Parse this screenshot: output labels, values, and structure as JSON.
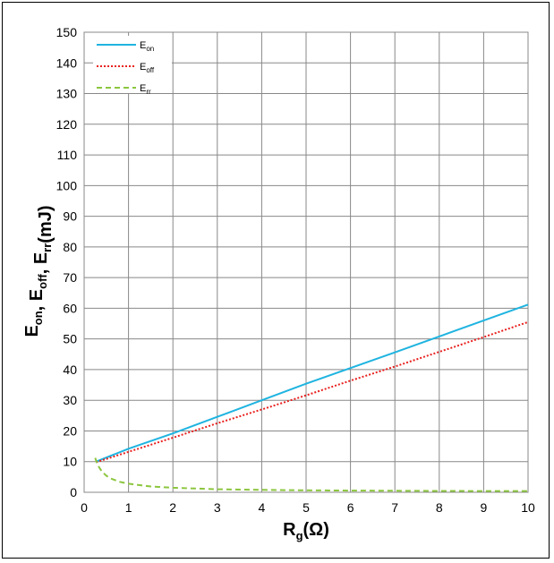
{
  "chart_data": {
    "type": "line",
    "xlabel": {
      "main": "R",
      "sub": "g",
      "rest": "(Ω)"
    },
    "ylabel": [
      {
        "main": "E",
        "sub": "on"
      },
      {
        "main": ", E",
        "sub": "off"
      },
      {
        "main": ", E",
        "sub": "rr"
      },
      {
        "main": "(mJ)",
        "sub": ""
      }
    ],
    "xlim": [
      0,
      10
    ],
    "ylim": [
      0,
      150
    ],
    "x_ticks": [
      0,
      1,
      2,
      3,
      4,
      5,
      6,
      7,
      8,
      9,
      10
    ],
    "y_ticks": [
      0,
      10,
      20,
      30,
      40,
      50,
      60,
      70,
      80,
      90,
      100,
      110,
      120,
      130,
      140,
      150
    ],
    "grid": true,
    "legend_position": "top-left",
    "series": [
      {
        "name": "E",
        "name_sub": "on",
        "color": "#1FB4E0",
        "dash": "solid",
        "x": [
          0.27,
          1,
          2,
          3,
          4,
          5,
          6,
          7,
          8,
          9,
          10
        ],
        "y": [
          10,
          14.2,
          19.2,
          24.6,
          30.0,
          35.4,
          40.5,
          45.6,
          50.8,
          56.0,
          61.2
        ]
      },
      {
        "name": "E",
        "name_sub": "off",
        "color": "#E8201E",
        "dash": "dotted",
        "x": [
          0.27,
          1,
          2,
          3,
          4,
          5,
          6,
          7,
          8,
          9,
          10
        ],
        "y": [
          9.8,
          13.2,
          17.8,
          22.5,
          27.0,
          31.6,
          36.4,
          41.0,
          45.8,
          50.6,
          55.5
        ]
      },
      {
        "name": "E",
        "name_sub": "rr",
        "color": "#8CC63F",
        "dash": "dashed",
        "x": [
          0.25,
          0.3,
          0.4,
          0.5,
          0.6,
          0.8,
          1,
          1.5,
          2,
          3,
          4,
          5,
          6,
          7,
          8,
          9,
          10
        ],
        "y": [
          11.2,
          9.0,
          6.8,
          5.4,
          4.5,
          3.4,
          2.8,
          1.9,
          1.5,
          1.0,
          0.8,
          0.65,
          0.55,
          0.5,
          0.45,
          0.42,
          0.4
        ]
      }
    ]
  }
}
